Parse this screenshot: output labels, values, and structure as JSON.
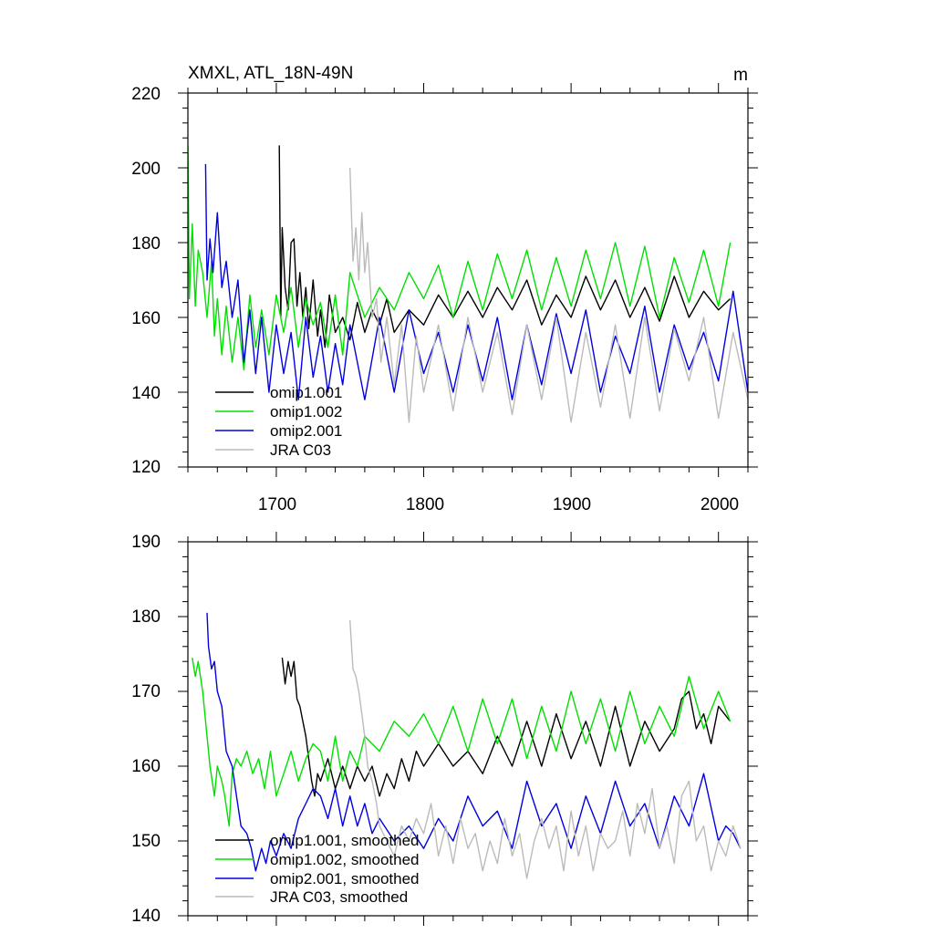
{
  "chart_data": [
    {
      "type": "line",
      "title": "XMXL, ATL_18N-49N",
      "units": "m",
      "x_range": [
        1640,
        2020
      ],
      "ylim": [
        120,
        220
      ],
      "x_ticks": [
        1700,
        1800,
        1900,
        2000
      ],
      "y_ticks": [
        120,
        140,
        160,
        180,
        200,
        220
      ],
      "legend_location": "lower-left",
      "series": [
        {
          "name": "omip1.001",
          "color": "#000000",
          "x": [
            1702,
            1703,
            1704,
            1706,
            1708,
            1710,
            1712,
            1714,
            1716,
            1718,
            1720,
            1722,
            1725,
            1728,
            1730,
            1733,
            1736,
            1740,
            1745,
            1750,
            1755,
            1760,
            1765,
            1770,
            1775,
            1780,
            1790,
            1800,
            1810,
            1820,
            1830,
            1840,
            1850,
            1860,
            1870,
            1880,
            1890,
            1900,
            1910,
            1920,
            1930,
            1940,
            1950,
            1960,
            1970,
            1980,
            1990,
            2000,
            2008
          ],
          "values": [
            206,
            160,
            184,
            168,
            162,
            180,
            181,
            163,
            172,
            160,
            168,
            157,
            170,
            155,
            162,
            152,
            166,
            156,
            160,
            154,
            164,
            156,
            162,
            158,
            165,
            156,
            162,
            158,
            166,
            160,
            167,
            160,
            168,
            162,
            170,
            158,
            166,
            160,
            171,
            162,
            170,
            160,
            168,
            159,
            171,
            160,
            167,
            162,
            165
          ]
        },
        {
          "name": "omip1.002",
          "color": "#00e000",
          "x": [
            1640,
            1641,
            1643,
            1645,
            1647,
            1650,
            1653,
            1656,
            1658,
            1660,
            1663,
            1666,
            1670,
            1674,
            1678,
            1682,
            1686,
            1690,
            1695,
            1700,
            1705,
            1710,
            1715,
            1720,
            1725,
            1730,
            1735,
            1740,
            1745,
            1750,
            1760,
            1770,
            1780,
            1790,
            1800,
            1810,
            1820,
            1830,
            1840,
            1850,
            1860,
            1870,
            1880,
            1890,
            1900,
            1910,
            1920,
            1930,
            1940,
            1950,
            1960,
            1970,
            1980,
            1990,
            2000,
            2008
          ],
          "values": [
            206,
            165,
            185,
            163,
            178,
            172,
            160,
            175,
            155,
            165,
            150,
            163,
            148,
            160,
            146,
            166,
            152,
            162,
            150,
            166,
            156,
            168,
            152,
            165,
            158,
            164,
            152,
            166,
            150,
            172,
            160,
            168,
            162,
            172,
            165,
            174,
            160,
            175,
            162,
            177,
            165,
            178,
            162,
            176,
            163,
            178,
            165,
            180,
            163,
            179,
            160,
            176,
            164,
            178,
            163,
            180
          ]
        },
        {
          "name": "omip2.001",
          "color": "#0000e0",
          "x": [
            1652,
            1653,
            1655,
            1657,
            1660,
            1663,
            1666,
            1670,
            1674,
            1678,
            1682,
            1686,
            1690,
            1695,
            1700,
            1705,
            1710,
            1715,
            1720,
            1725,
            1730,
            1735,
            1740,
            1745,
            1750,
            1760,
            1770,
            1780,
            1790,
            1800,
            1810,
            1820,
            1830,
            1840,
            1850,
            1860,
            1870,
            1880,
            1890,
            1900,
            1910,
            1920,
            1930,
            1940,
            1950,
            1960,
            1970,
            1980,
            1990,
            2000,
            2010,
            2020
          ],
          "values": [
            201,
            170,
            181,
            172,
            188,
            168,
            175,
            160,
            170,
            148,
            162,
            145,
            160,
            140,
            158,
            145,
            156,
            138,
            160,
            144,
            155,
            140,
            153,
            142,
            158,
            138,
            160,
            140,
            162,
            145,
            156,
            140,
            158,
            143,
            160,
            138,
            158,
            142,
            161,
            145,
            162,
            140,
            155,
            145,
            163,
            140,
            158,
            146,
            156,
            143,
            167,
            140
          ]
        },
        {
          "name": "JRA C03",
          "color": "#bbbbbb",
          "x": [
            1750,
            1752,
            1754,
            1756,
            1758,
            1760,
            1762,
            1765,
            1768,
            1771,
            1775,
            1780,
            1785,
            1790,
            1795,
            1800,
            1810,
            1820,
            1830,
            1840,
            1850,
            1860,
            1870,
            1880,
            1890,
            1900,
            1910,
            1920,
            1930,
            1940,
            1950,
            1960,
            1970,
            1980,
            1990,
            2000,
            2010,
            2020
          ],
          "values": [
            200,
            175,
            184,
            170,
            188,
            172,
            180,
            160,
            165,
            148,
            160,
            142,
            158,
            132,
            155,
            140,
            158,
            135,
            160,
            140,
            156,
            134,
            158,
            138,
            160,
            132,
            156,
            136,
            158,
            133,
            160,
            135,
            157,
            143,
            160,
            133,
            156,
            138
          ]
        }
      ]
    },
    {
      "type": "line",
      "title": "",
      "x_range": [
        1640,
        2020
      ],
      "ylim": [
        140,
        190
      ],
      "y_ticks": [
        140,
        150,
        160,
        170,
        180,
        190
      ],
      "legend_location": "lower-left",
      "series": [
        {
          "name": "omip1.001, smoothed",
          "color": "#000000",
          "x": [
            1704,
            1706,
            1708,
            1710,
            1712,
            1714,
            1716,
            1718,
            1720,
            1722,
            1724,
            1726,
            1728,
            1730,
            1735,
            1740,
            1745,
            1750,
            1755,
            1760,
            1765,
            1770,
            1775,
            1780,
            1785,
            1790,
            1795,
            1800,
            1810,
            1820,
            1830,
            1840,
            1850,
            1860,
            1870,
            1880,
            1890,
            1900,
            1910,
            1920,
            1930,
            1940,
            1950,
            1960,
            1970,
            1975,
            1980,
            1985,
            1990,
            1995,
            2000,
            2008
          ],
          "values": [
            174.5,
            171,
            174,
            172,
            174,
            169,
            168,
            166,
            164,
            161,
            158,
            156,
            159,
            158,
            161,
            157,
            160,
            157,
            160,
            158,
            160,
            156,
            159,
            157,
            161,
            158,
            162,
            160,
            163,
            160,
            162,
            159,
            164,
            160,
            166,
            160,
            167,
            161,
            166,
            160,
            168,
            160,
            166,
            162,
            165,
            169,
            170,
            165,
            167,
            163,
            168,
            166
          ]
        },
        {
          "name": "omip1.002, smoothed",
          "color": "#00e000",
          "x": [
            1643,
            1645,
            1647,
            1650,
            1652,
            1655,
            1658,
            1660,
            1663,
            1665,
            1668,
            1670,
            1673,
            1676,
            1680,
            1684,
            1688,
            1692,
            1696,
            1700,
            1705,
            1710,
            1715,
            1720,
            1725,
            1730,
            1735,
            1740,
            1745,
            1750,
            1755,
            1760,
            1770,
            1780,
            1790,
            1800,
            1810,
            1820,
            1830,
            1840,
            1850,
            1860,
            1870,
            1880,
            1890,
            1900,
            1910,
            1920,
            1930,
            1940,
            1950,
            1960,
            1970,
            1980,
            1990,
            2000,
            2008
          ],
          "values": [
            174.5,
            172,
            174,
            170,
            166,
            160,
            156,
            160,
            158,
            156,
            152,
            159,
            161,
            160,
            162,
            159,
            161,
            157,
            162,
            156,
            159,
            162,
            158,
            161,
            163,
            162,
            158,
            164,
            158,
            162,
            160,
            164,
            162,
            166,
            164,
            167,
            163,
            168,
            162,
            169,
            163,
            169,
            161,
            168,
            162,
            170,
            163,
            169,
            162,
            170,
            163,
            168,
            164,
            172,
            165,
            170,
            166
          ]
        },
        {
          "name": "omip2.001, smoothed",
          "color": "#0000e0",
          "x": [
            1653,
            1654,
            1656,
            1658,
            1660,
            1663,
            1666,
            1670,
            1673,
            1676,
            1680,
            1683,
            1686,
            1690,
            1693,
            1696,
            1700,
            1705,
            1710,
            1715,
            1720,
            1725,
            1730,
            1735,
            1740,
            1745,
            1750,
            1755,
            1760,
            1765,
            1770,
            1780,
            1790,
            1800,
            1810,
            1820,
            1830,
            1840,
            1850,
            1860,
            1870,
            1880,
            1890,
            1900,
            1910,
            1920,
            1930,
            1940,
            1950,
            1960,
            1970,
            1980,
            1990,
            2000,
            2005,
            2010,
            2015
          ],
          "values": [
            180.5,
            176,
            173,
            174,
            170,
            168,
            162,
            160,
            156,
            152,
            151,
            149,
            146,
            149,
            147,
            150,
            148,
            151,
            149,
            153,
            155,
            157,
            156,
            153,
            157,
            152,
            156,
            152,
            155,
            151,
            153,
            150,
            152,
            149,
            153,
            150,
            156,
            152,
            154,
            149,
            158,
            152,
            155,
            149,
            156,
            151,
            158,
            152,
            155,
            149,
            156,
            152,
            159,
            150,
            152,
            151,
            149
          ]
        },
        {
          "name": "JRA C03, smoothed",
          "color": "#bbbbbb",
          "x": [
            1750,
            1752,
            1754,
            1756,
            1758,
            1760,
            1762,
            1765,
            1768,
            1770,
            1775,
            1780,
            1785,
            1790,
            1795,
            1800,
            1805,
            1810,
            1815,
            1820,
            1825,
            1830,
            1835,
            1840,
            1845,
            1850,
            1855,
            1860,
            1865,
            1870,
            1875,
            1880,
            1885,
            1890,
            1895,
            1900,
            1905,
            1910,
            1915,
            1920,
            1925,
            1930,
            1935,
            1940,
            1945,
            1950,
            1955,
            1960,
            1965,
            1970,
            1975,
            1980,
            1985,
            1990,
            1995,
            2000,
            2005,
            2010,
            2015
          ],
          "values": [
            179.5,
            173,
            172,
            170,
            167,
            164,
            160,
            158,
            155,
            152,
            150,
            148,
            152,
            150,
            153,
            151,
            155,
            148,
            152,
            147,
            153,
            149,
            151,
            146,
            150,
            147,
            153,
            148,
            151,
            145,
            150,
            153,
            149,
            152,
            146,
            154,
            148,
            152,
            146,
            151,
            149,
            150,
            154,
            148,
            155,
            151,
            157,
            149,
            152,
            147,
            156,
            158,
            150,
            152,
            146,
            150,
            148,
            152,
            149
          ]
        }
      ]
    }
  ]
}
